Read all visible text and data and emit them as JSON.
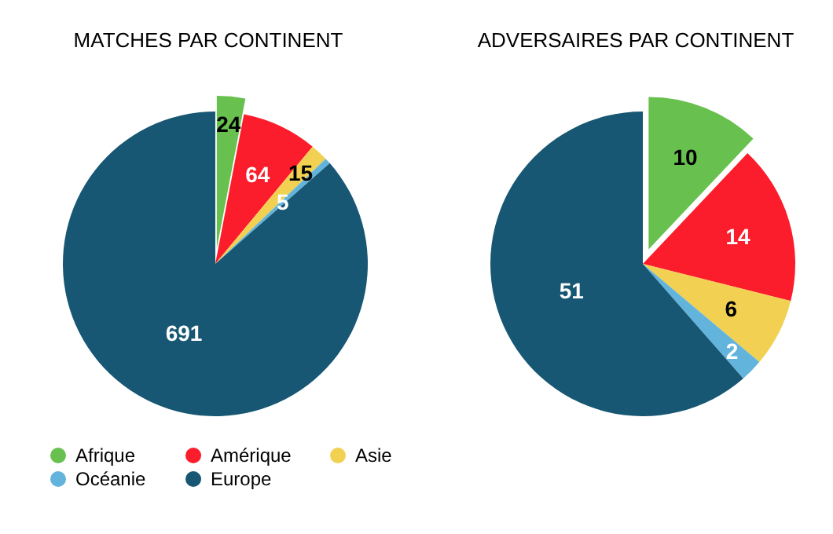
{
  "chart_data": [
    {
      "type": "pie",
      "title": "MATCHES PAR CONTINENT",
      "categories": [
        "Afrique",
        "Amérique",
        "Asie",
        "Océanie",
        "Europe"
      ],
      "values": [
        24,
        64,
        15,
        5,
        691
      ],
      "colors": [
        "#68c04f",
        "#fb1d2b",
        "#f1d052",
        "#62b4dd",
        "#175773"
      ],
      "data_labels": true,
      "legend": "bottom"
    },
    {
      "type": "pie",
      "title": "ADVERSAIRES PAR CONTINENT",
      "categories": [
        null,
        null,
        null,
        null,
        null
      ],
      "values": [
        10,
        14,
        6,
        2,
        51
      ],
      "colors": [
        "#68c04f",
        "#fb1d2b",
        "#f1d052",
        "#62b4dd",
        "#175773"
      ],
      "data_labels": true
    }
  ]
}
